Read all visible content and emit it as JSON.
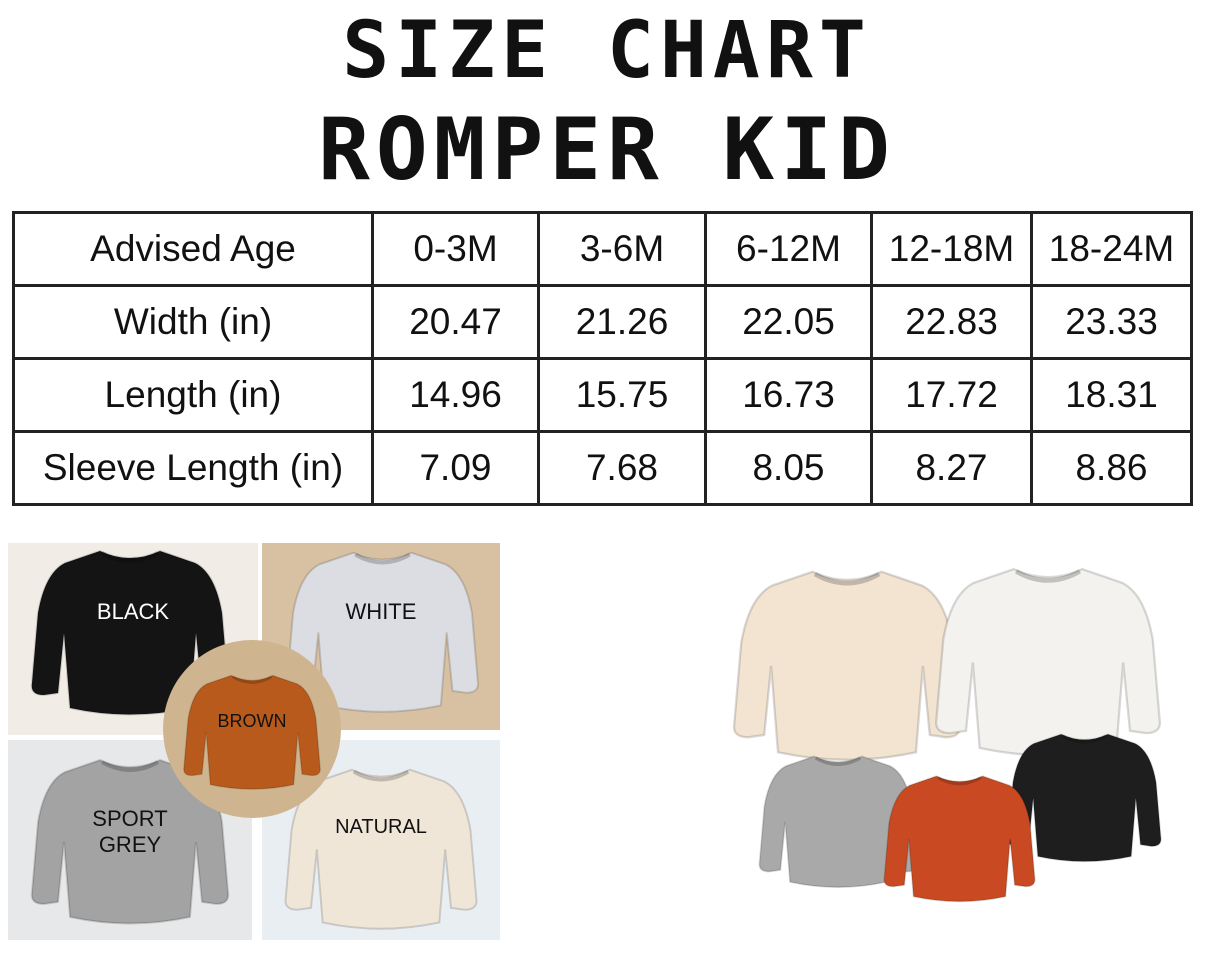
{
  "title_line1": "SIZE CHART",
  "title_line2": "ROMPER KID",
  "table": {
    "header": {
      "label": "Advised Age",
      "sizes": [
        "0-3M",
        "3-6M",
        "6-12M",
        "12-18M",
        "18-24M"
      ]
    },
    "rows": [
      {
        "label": "Width (in)",
        "values": [
          "20.47",
          "21.26",
          "22.05",
          "22.83",
          "23.33"
        ]
      },
      {
        "label": "Length (in)",
        "values": [
          "14.96",
          "15.75",
          "16.73",
          "17.72",
          "18.31"
        ]
      },
      {
        "label": "Sleeve Length (in)",
        "values": [
          "7.09",
          "7.68",
          "8.05",
          "8.27",
          "8.86"
        ]
      }
    ]
  },
  "colors_collage": [
    {
      "label": "BLACK",
      "hex": "#141414"
    },
    {
      "label": "WHITE",
      "hex": "#dcdde3"
    },
    {
      "label": "BROWN",
      "hex": "#b85a1c"
    },
    {
      "label": "SPORT GREY",
      "line1": "SPORT",
      "line2": "GREY",
      "hex": "#a3a3a3"
    },
    {
      "label": "NATURAL",
      "hex": "#efe6d8"
    }
  ],
  "product_colors": {
    "cream": "#f3e4d2",
    "white": "#f4f2ee",
    "grey": "#a9a9a9",
    "orange": "#c94a22",
    "black": "#1e1e1e"
  }
}
